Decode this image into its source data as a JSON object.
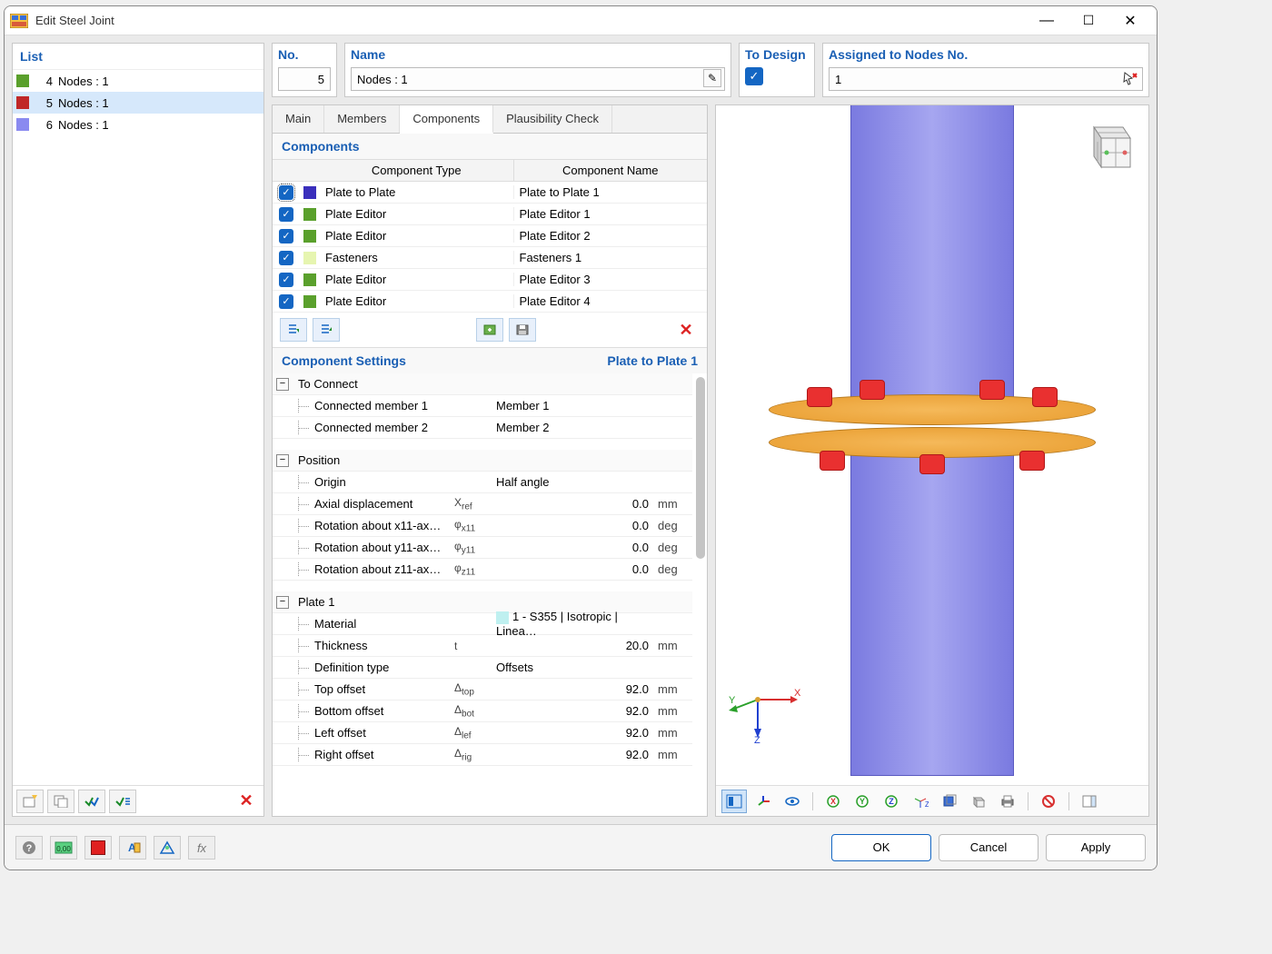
{
  "window": {
    "title": "Edit Steel Joint"
  },
  "list": {
    "title": "List",
    "items": [
      {
        "num": "4",
        "label": "Nodes : 1",
        "color": "#5aa02c",
        "selected": false
      },
      {
        "num": "5",
        "label": "Nodes : 1",
        "color": "#c02828",
        "selected": true
      },
      {
        "num": "6",
        "label": "Nodes : 1",
        "color": "#8a8af0",
        "selected": false
      }
    ]
  },
  "fields": {
    "no_label": "No.",
    "no_value": "5",
    "name_label": "Name",
    "name_value": "Nodes : 1",
    "design_label": "To Design",
    "nodes_label": "Assigned to Nodes No.",
    "nodes_value": "1"
  },
  "tabs": {
    "items": [
      "Main",
      "Members",
      "Components",
      "Plausibility Check"
    ],
    "active": 2
  },
  "components": {
    "title": "Components",
    "head_type": "Component Type",
    "head_name": "Component Name",
    "rows": [
      {
        "color": "#3a2fbc",
        "type": "Plate to Plate",
        "name": "Plate to Plate 1",
        "outlined": true
      },
      {
        "color": "#5aa02c",
        "type": "Plate Editor",
        "name": "Plate Editor 1"
      },
      {
        "color": "#5aa02c",
        "type": "Plate Editor",
        "name": "Plate Editor 2"
      },
      {
        "color": "#e6f5b0",
        "type": "Fasteners",
        "name": "Fasteners 1"
      },
      {
        "color": "#5aa02c",
        "type": "Plate Editor",
        "name": "Plate Editor 3"
      },
      {
        "color": "#5aa02c",
        "type": "Plate Editor",
        "name": "Plate Editor 4"
      }
    ]
  },
  "settings": {
    "title": "Component Settings",
    "selected": "Plate to Plate 1",
    "groups": [
      {
        "title": "To Connect",
        "rows": [
          {
            "lbl": "Connected member 1",
            "valfull": "Member 1"
          },
          {
            "lbl": "Connected member 2",
            "valfull": "Member 2"
          }
        ]
      },
      {
        "title": "Position",
        "rows": [
          {
            "lbl": "Origin",
            "valfull": "Half angle"
          },
          {
            "lbl": "Axial displacement",
            "sym": "Xref",
            "val": "0.0",
            "unit": "mm"
          },
          {
            "lbl": "Rotation about x11-ax…",
            "sym": "φx11",
            "val": "0.0",
            "unit": "deg"
          },
          {
            "lbl": "Rotation about y11-ax…",
            "sym": "φy11",
            "val": "0.0",
            "unit": "deg"
          },
          {
            "lbl": "Rotation about z11-ax…",
            "sym": "φz11",
            "val": "0.0",
            "unit": "deg"
          }
        ]
      },
      {
        "title": "Plate 1",
        "rows": [
          {
            "lbl": "Material",
            "valfull": "1 - S355 | Isotropic | Linea…",
            "matcolor": "#bff0f0"
          },
          {
            "lbl": "Thickness",
            "sym": "t",
            "val": "20.0",
            "unit": "mm"
          },
          {
            "lbl": "Definition type",
            "valfull": "Offsets"
          },
          {
            "lbl": "Top offset",
            "sym": "Δtop",
            "val": "92.0",
            "unit": "mm"
          },
          {
            "lbl": "Bottom offset",
            "sym": "Δbot",
            "val": "92.0",
            "unit": "mm"
          },
          {
            "lbl": "Left offset",
            "sym": "Δlef",
            "val": "92.0",
            "unit": "mm"
          },
          {
            "lbl": "Right offset",
            "sym": "Δrig",
            "val": "92.0",
            "unit": "mm"
          }
        ]
      }
    ]
  },
  "viewport": {
    "column_color": "#8c8cf0",
    "flange_color": "#f0a83c",
    "bolt_color": "#e93030",
    "background": "#ffffff"
  },
  "viewport_toolbar": [
    "view-mode-icon",
    "axes-icon",
    "eye-icon",
    "sep",
    "x-axis-icon",
    "y-axis-icon",
    "z-axis-icon",
    "iso-icon",
    "box-icon",
    "cube-icon",
    "print-icon",
    "sep",
    "reset-icon",
    "sep",
    "panel-icon"
  ],
  "footer": {
    "ok": "OK",
    "cancel": "Cancel",
    "apply": "Apply"
  }
}
